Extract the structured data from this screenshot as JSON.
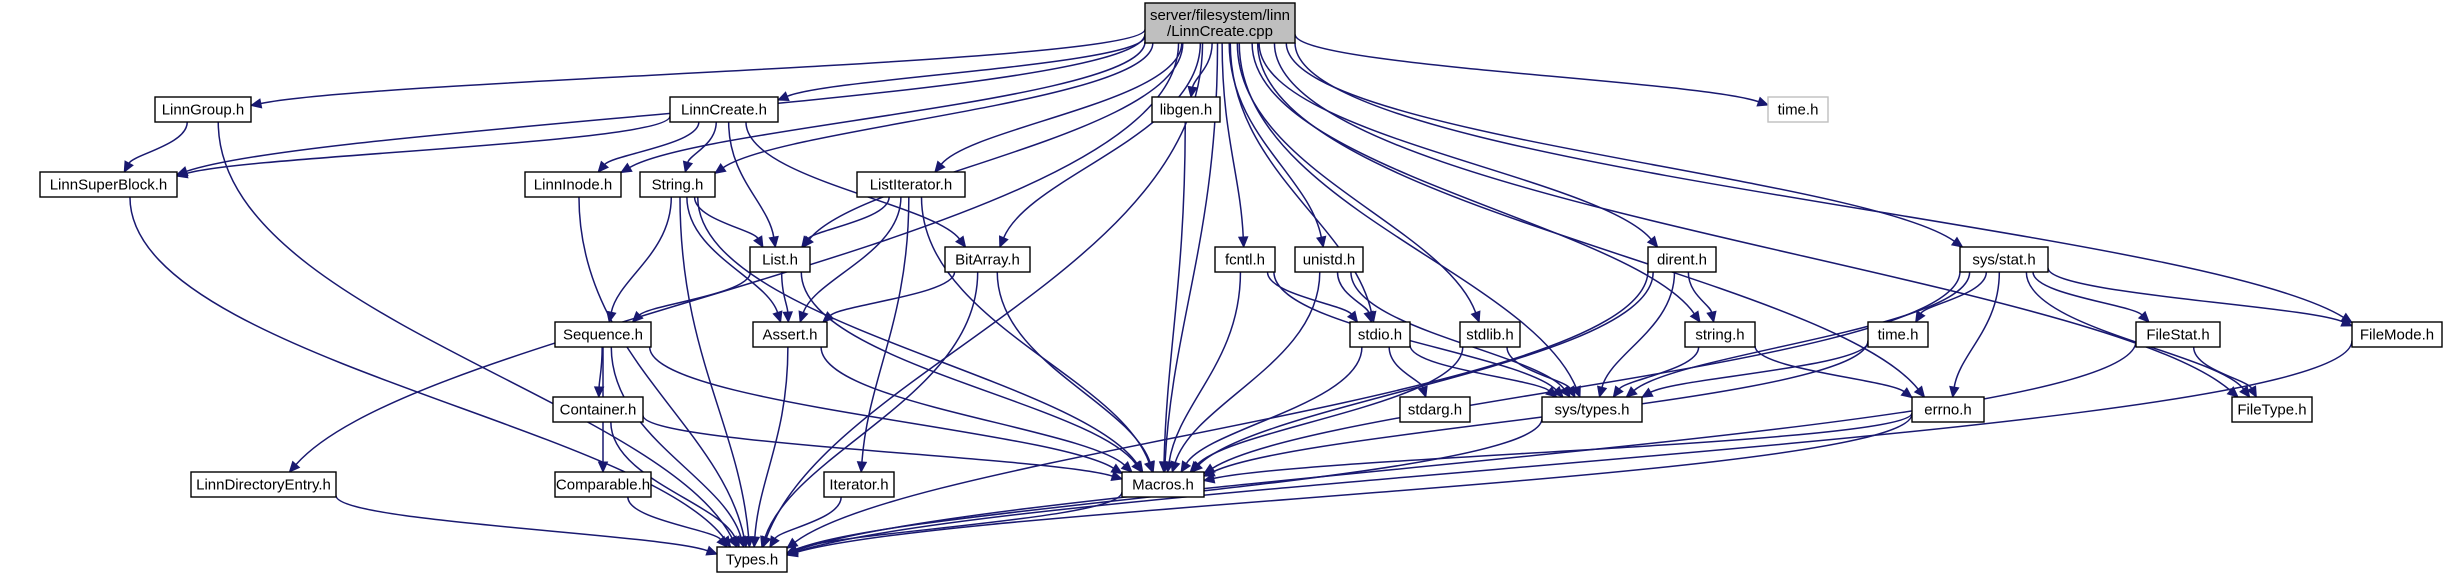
{
  "diagram": {
    "root": "server/filesystem/linn/LinnCreate.cpp",
    "nodes": [
      {
        "id": "root",
        "lines": [
          "server/filesystem/linn",
          "/LinnCreate.cpp"
        ],
        "style": "root"
      },
      {
        "id": "LinnGroup",
        "lines": [
          "LinnGroup.h"
        ]
      },
      {
        "id": "LinnSuperBlock",
        "lines": [
          "LinnSuperBlock.h"
        ]
      },
      {
        "id": "LinnCreate",
        "lines": [
          "LinnCreate.h"
        ]
      },
      {
        "id": "LinnInode",
        "lines": [
          "LinnInode.h"
        ]
      },
      {
        "id": "StringH",
        "lines": [
          "String.h"
        ]
      },
      {
        "id": "ListIterator",
        "lines": [
          "ListIterator.h"
        ]
      },
      {
        "id": "List",
        "lines": [
          "List.h"
        ]
      },
      {
        "id": "libgen",
        "lines": [
          "libgen.h"
        ]
      },
      {
        "id": "BitArray",
        "lines": [
          "BitArray.h"
        ]
      },
      {
        "id": "fcntl",
        "lines": [
          "fcntl.h"
        ]
      },
      {
        "id": "unistd",
        "lines": [
          "unistd.h"
        ]
      },
      {
        "id": "stdlib",
        "lines": [
          "stdlib.h"
        ]
      },
      {
        "id": "dirent",
        "lines": [
          "dirent.h"
        ]
      },
      {
        "id": "timeGray",
        "lines": [
          "time.h"
        ],
        "style": "gray"
      },
      {
        "id": "sysstat",
        "lines": [
          "sys/stat.h"
        ]
      },
      {
        "id": "Sequence",
        "lines": [
          "Sequence.h"
        ]
      },
      {
        "id": "Assert",
        "lines": [
          "Assert.h"
        ]
      },
      {
        "id": "stdio",
        "lines": [
          "stdio.h"
        ]
      },
      {
        "id": "stringlc",
        "lines": [
          "string.h"
        ]
      },
      {
        "id": "time2",
        "lines": [
          "time.h"
        ]
      },
      {
        "id": "FileStat",
        "lines": [
          "FileStat.h"
        ]
      },
      {
        "id": "FileMode",
        "lines": [
          "FileMode.h"
        ]
      },
      {
        "id": "Container",
        "lines": [
          "Container.h"
        ]
      },
      {
        "id": "stdarg",
        "lines": [
          "stdarg.h"
        ]
      },
      {
        "id": "systypes",
        "lines": [
          "sys/types.h"
        ]
      },
      {
        "id": "errno",
        "lines": [
          "errno.h"
        ]
      },
      {
        "id": "FileType",
        "lines": [
          "FileType.h"
        ]
      },
      {
        "id": "Comparable",
        "lines": [
          "Comparable.h"
        ]
      },
      {
        "id": "LinnDirectoryEntry",
        "lines": [
          "LinnDirectoryEntry.h"
        ]
      },
      {
        "id": "Iterator",
        "lines": [
          "Iterator.h"
        ]
      },
      {
        "id": "Macros",
        "lines": [
          "Macros.h"
        ]
      },
      {
        "id": "Types",
        "lines": [
          "Types.h"
        ]
      }
    ],
    "edges": [
      [
        "root",
        "Types"
      ],
      [
        "root",
        "LinnGroup"
      ],
      [
        "root",
        "LinnSuperBlock"
      ],
      [
        "root",
        "LinnDirectoryEntry"
      ],
      [
        "root",
        "LinnInode"
      ],
      [
        "root",
        "StringH"
      ],
      [
        "root",
        "LinnCreate"
      ],
      [
        "root",
        "List"
      ],
      [
        "root",
        "ListIterator"
      ],
      [
        "root",
        "BitArray"
      ],
      [
        "root",
        "Macros"
      ],
      [
        "root",
        "libgen"
      ],
      [
        "root",
        "fcntl"
      ],
      [
        "root",
        "unistd"
      ],
      [
        "root",
        "stdio"
      ],
      [
        "root",
        "stdlib"
      ],
      [
        "root",
        "systypes"
      ],
      [
        "root",
        "dirent"
      ],
      [
        "root",
        "stringlc"
      ],
      [
        "root",
        "timeGray"
      ],
      [
        "root",
        "sysstat"
      ],
      [
        "root",
        "errno"
      ],
      [
        "root",
        "FileType"
      ],
      [
        "root",
        "FileMode"
      ],
      [
        "LinnGroup",
        "LinnSuperBlock"
      ],
      [
        "LinnGroup",
        "Types"
      ],
      [
        "LinnSuperBlock",
        "Types"
      ],
      [
        "LinnCreate",
        "LinnSuperBlock"
      ],
      [
        "LinnCreate",
        "LinnInode"
      ],
      [
        "LinnCreate",
        "StringH"
      ],
      [
        "LinnCreate",
        "List"
      ],
      [
        "LinnCreate",
        "BitArray"
      ],
      [
        "LinnInode",
        "Types"
      ],
      [
        "StringH",
        "List"
      ],
      [
        "StringH",
        "Sequence"
      ],
      [
        "StringH",
        "Assert"
      ],
      [
        "StringH",
        "Macros"
      ],
      [
        "StringH",
        "Types"
      ],
      [
        "ListIterator",
        "List"
      ],
      [
        "ListIterator",
        "Assert"
      ],
      [
        "ListIterator",
        "Iterator"
      ],
      [
        "ListIterator",
        "Macros"
      ],
      [
        "List",
        "Sequence"
      ],
      [
        "List",
        "Assert"
      ],
      [
        "List",
        "Macros"
      ],
      [
        "BitArray",
        "Assert"
      ],
      [
        "BitArray",
        "Macros"
      ],
      [
        "BitArray",
        "Types"
      ],
      [
        "Sequence",
        "Container"
      ],
      [
        "Sequence",
        "Comparable"
      ],
      [
        "Sequence",
        "Macros"
      ],
      [
        "Sequence",
        "Types"
      ],
      [
        "Assert",
        "Macros"
      ],
      [
        "Assert",
        "Types"
      ],
      [
        "Container",
        "Macros"
      ],
      [
        "Container",
        "Types"
      ],
      [
        "Comparable",
        "Types"
      ],
      [
        "LinnDirectoryEntry",
        "Types"
      ],
      [
        "Iterator",
        "Types"
      ],
      [
        "libgen",
        "Macros"
      ],
      [
        "fcntl",
        "stdio"
      ],
      [
        "fcntl",
        "systypes"
      ],
      [
        "fcntl",
        "Macros"
      ],
      [
        "unistd",
        "stdio"
      ],
      [
        "unistd",
        "systypes"
      ],
      [
        "unistd",
        "Macros"
      ],
      [
        "stdio",
        "stdarg"
      ],
      [
        "stdio",
        "systypes"
      ],
      [
        "stdio",
        "Macros"
      ],
      [
        "stdlib",
        "systypes"
      ],
      [
        "stdlib",
        "Macros"
      ],
      [
        "dirent",
        "stringlc"
      ],
      [
        "dirent",
        "systypes"
      ],
      [
        "dirent",
        "Macros"
      ],
      [
        "dirent",
        "Types"
      ],
      [
        "stringlc",
        "systypes"
      ],
      [
        "stringlc",
        "errno"
      ],
      [
        "time2",
        "systypes"
      ],
      [
        "time2",
        "Macros"
      ],
      [
        "sysstat",
        "time2"
      ],
      [
        "sysstat",
        "FileStat"
      ],
      [
        "sysstat",
        "FileMode"
      ],
      [
        "sysstat",
        "FileType"
      ],
      [
        "sysstat",
        "systypes"
      ],
      [
        "sysstat",
        "errno"
      ],
      [
        "sysstat",
        "Macros"
      ],
      [
        "FileStat",
        "FileType"
      ],
      [
        "FileStat",
        "Types"
      ],
      [
        "FileMode",
        "Types"
      ],
      [
        "errno",
        "Macros"
      ],
      [
        "errno",
        "Types"
      ],
      [
        "systypes",
        "Types"
      ],
      [
        "Macros",
        "Types"
      ]
    ],
    "colors": {
      "edge": "#191970",
      "root_fill": "#bfbfbf",
      "gray_border": "#bfbfbf"
    }
  }
}
